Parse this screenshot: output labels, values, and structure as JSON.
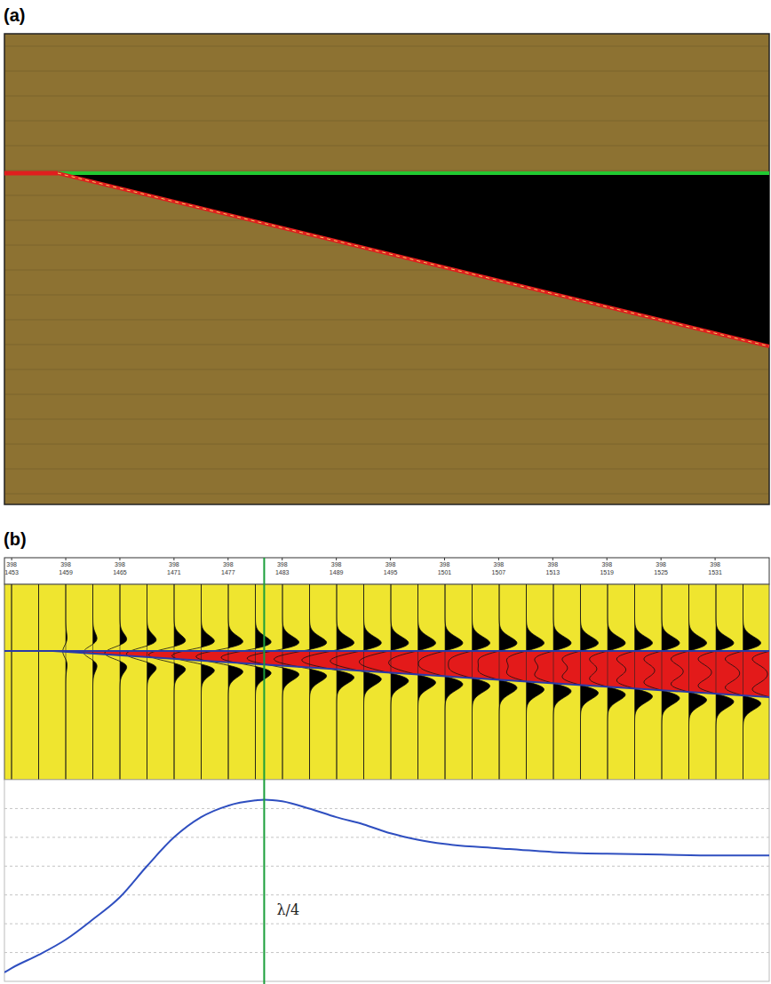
{
  "figure": {
    "panel_a": {
      "label": "(a)"
    },
    "panel_b": {
      "label": "(b)",
      "trace_headers": {
        "line": "398",
        "traces": [
          1453,
          1459,
          1465,
          1471,
          1477,
          1483,
          1489,
          1495,
          1501,
          1507,
          1513,
          1519,
          1525,
          1531
        ]
      }
    }
  },
  "chart_data": {
    "type": "line",
    "x": [
      1452.2,
      1453,
      1456,
      1459,
      1462,
      1465,
      1468,
      1471,
      1474,
      1477,
      1480,
      1481,
      1483,
      1486,
      1489,
      1492,
      1495,
      1498,
      1501,
      1507,
      1513,
      1519,
      1525,
      1531,
      1537
    ],
    "values": [
      0.31,
      0.46,
      0.92,
      1.45,
      2.15,
      2.92,
      4.0,
      5.0,
      5.7,
      6.1,
      6.28,
      6.31,
      6.25,
      6.0,
      5.7,
      5.45,
      5.14,
      4.92,
      4.77,
      4.62,
      4.49,
      4.43,
      4.4,
      4.37,
      4.37
    ],
    "color": "#2f4fc0",
    "xlim": [
      1452.2,
      1537
    ],
    "ylim": [
      0,
      7
    ],
    "yticks": [
      1,
      2,
      3,
      4,
      5,
      6
    ],
    "grid": true,
    "tick_labels": false,
    "annotations": [
      {
        "text": "λ/4",
        "x": 1481
      }
    ]
  }
}
